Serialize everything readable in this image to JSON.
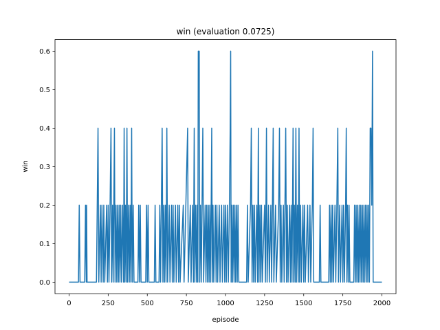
{
  "chart_data": {
    "type": "line",
    "title": "win (evaluation 0.0725)",
    "xlabel": "episode",
    "ylabel": "win",
    "xlim": [
      -90,
      2090
    ],
    "ylim": [
      -0.03,
      0.63
    ],
    "xticks": [
      0,
      250,
      500,
      750,
      1000,
      1250,
      1500,
      1750,
      2000
    ],
    "xtick_labels": [
      "0",
      "250",
      "500",
      "750",
      "1000",
      "1250",
      "1500",
      "1750",
      "2000"
    ],
    "yticks": [
      0.0,
      0.1,
      0.2,
      0.3,
      0.4,
      0.5,
      0.6
    ],
    "ytick_labels": [
      "0.0",
      "0.1",
      "0.2",
      "0.3",
      "0.4",
      "0.5",
      "0.6"
    ],
    "grid": false,
    "series": [
      {
        "color": "#1f77b4",
        "points": [
          [
            0,
            0.0
          ],
          [
            60,
            0.0
          ],
          [
            65,
            0.2
          ],
          [
            70,
            0.0
          ],
          [
            100,
            0.0
          ],
          [
            105,
            0.2
          ],
          [
            110,
            0.0
          ],
          [
            112,
            0.2
          ],
          [
            115,
            0.0
          ],
          [
            175,
            0.0
          ],
          [
            180,
            0.2
          ],
          [
            185,
            0.4
          ],
          [
            190,
            0.0
          ],
          [
            200,
            0.2
          ],
          [
            205,
            0.0
          ],
          [
            210,
            0.2
          ],
          [
            218,
            0.0
          ],
          [
            222,
            0.2
          ],
          [
            228,
            0.0
          ],
          [
            240,
            0.2
          ],
          [
            245,
            0.0
          ],
          [
            250,
            0.2
          ],
          [
            255,
            0.0
          ],
          [
            262,
            0.2
          ],
          [
            268,
            0.4
          ],
          [
            272,
            0.0
          ],
          [
            278,
            0.2
          ],
          [
            282,
            0.0
          ],
          [
            290,
            0.4
          ],
          [
            294,
            0.0
          ],
          [
            300,
            0.2
          ],
          [
            305,
            0.0
          ],
          [
            310,
            0.2
          ],
          [
            315,
            0.0
          ],
          [
            320,
            0.2
          ],
          [
            325,
            0.0
          ],
          [
            330,
            0.2
          ],
          [
            335,
            0.0
          ],
          [
            342,
            0.2
          ],
          [
            348,
            0.0
          ],
          [
            352,
            0.4
          ],
          [
            356,
            0.0
          ],
          [
            360,
            0.2
          ],
          [
            365,
            0.0
          ],
          [
            370,
            0.4
          ],
          [
            374,
            0.0
          ],
          [
            380,
            0.2
          ],
          [
            385,
            0.0
          ],
          [
            390,
            0.2
          ],
          [
            395,
            0.0
          ],
          [
            400,
            0.4
          ],
          [
            404,
            0.0
          ],
          [
            410,
            0.2
          ],
          [
            415,
            0.0
          ],
          [
            440,
            0.0
          ],
          [
            445,
            0.2
          ],
          [
            450,
            0.0
          ],
          [
            455,
            0.2
          ],
          [
            460,
            0.0
          ],
          [
            490,
            0.0
          ],
          [
            495,
            0.2
          ],
          [
            500,
            0.0
          ],
          [
            505,
            0.2
          ],
          [
            510,
            0.0
          ],
          [
            545,
            0.0
          ],
          [
            550,
            0.2
          ],
          [
            555,
            0.0
          ],
          [
            575,
            0.0
          ],
          [
            580,
            0.2
          ],
          [
            585,
            0.0
          ],
          [
            595,
            0.4
          ],
          [
            600,
            0.0
          ],
          [
            605,
            0.2
          ],
          [
            610,
            0.0
          ],
          [
            615,
            0.2
          ],
          [
            620,
            0.0
          ],
          [
            625,
            0.4
          ],
          [
            630,
            0.0
          ],
          [
            640,
            0.2
          ],
          [
            645,
            0.0
          ],
          [
            655,
            0.2
          ],
          [
            660,
            0.0
          ],
          [
            665,
            0.2
          ],
          [
            670,
            0.0
          ],
          [
            680,
            0.2
          ],
          [
            685,
            0.0
          ],
          [
            695,
            0.2
          ],
          [
            700,
            0.0
          ],
          [
            705,
            0.2
          ],
          [
            710,
            0.0
          ],
          [
            730,
            0.2
          ],
          [
            735,
            0.0
          ],
          [
            758,
            0.4
          ],
          [
            762,
            0.0
          ],
          [
            775,
            0.2
          ],
          [
            780,
            0.0
          ],
          [
            790,
            0.2
          ],
          [
            795,
            0.0
          ],
          [
            800,
            0.4
          ],
          [
            804,
            0.0
          ],
          [
            810,
            0.2
          ],
          [
            815,
            0.0
          ],
          [
            820,
            0.2
          ],
          [
            823,
            0.0
          ],
          [
            826,
            0.6
          ],
          [
            832,
            0.6
          ],
          [
            835,
            0.0
          ],
          [
            840,
            0.2
          ],
          [
            845,
            0.0
          ],
          [
            855,
            0.4
          ],
          [
            860,
            0.0
          ],
          [
            870,
            0.2
          ],
          [
            875,
            0.0
          ],
          [
            880,
            0.2
          ],
          [
            885,
            0.0
          ],
          [
            890,
            0.2
          ],
          [
            895,
            0.0
          ],
          [
            900,
            0.2
          ],
          [
            905,
            0.0
          ],
          [
            912,
            0.4
          ],
          [
            916,
            0.0
          ],
          [
            920,
            0.2
          ],
          [
            925,
            0.0
          ],
          [
            935,
            0.2
          ],
          [
            940,
            0.0
          ],
          [
            945,
            0.2
          ],
          [
            950,
            0.0
          ],
          [
            960,
            0.2
          ],
          [
            965,
            0.0
          ],
          [
            975,
            0.2
          ],
          [
            980,
            0.0
          ],
          [
            990,
            0.2
          ],
          [
            995,
            0.0
          ],
          [
            1000,
            0.2
          ],
          [
            1005,
            0.0
          ],
          [
            1012,
            0.2
          ],
          [
            1018,
            0.0
          ],
          [
            1025,
            0.2
          ],
          [
            1030,
            0.4
          ],
          [
            1033,
            0.6
          ],
          [
            1036,
            0.0
          ],
          [
            1040,
            0.2
          ],
          [
            1045,
            0.0
          ],
          [
            1050,
            0.2
          ],
          [
            1055,
            0.0
          ],
          [
            1060,
            0.2
          ],
          [
            1065,
            0.0
          ],
          [
            1070,
            0.2
          ],
          [
            1075,
            0.0
          ],
          [
            1080,
            0.2
          ],
          [
            1085,
            0.0
          ],
          [
            1135,
            0.0
          ],
          [
            1140,
            0.2
          ],
          [
            1145,
            0.0
          ],
          [
            1160,
            0.2
          ],
          [
            1165,
            0.4
          ],
          [
            1170,
            0.0
          ],
          [
            1175,
            0.2
          ],
          [
            1180,
            0.0
          ],
          [
            1185,
            0.2
          ],
          [
            1190,
            0.0
          ],
          [
            1200,
            0.2
          ],
          [
            1205,
            0.0
          ],
          [
            1210,
            0.4
          ],
          [
            1214,
            0.0
          ],
          [
            1220,
            0.2
          ],
          [
            1225,
            0.0
          ],
          [
            1230,
            0.2
          ],
          [
            1235,
            0.0
          ],
          [
            1250,
            0.2
          ],
          [
            1255,
            0.0
          ],
          [
            1262,
            0.4
          ],
          [
            1266,
            0.0
          ],
          [
            1275,
            0.2
          ],
          [
            1280,
            0.0
          ],
          [
            1290,
            0.2
          ],
          [
            1295,
            0.0
          ],
          [
            1305,
            0.4
          ],
          [
            1309,
            0.0
          ],
          [
            1320,
            0.2
          ],
          [
            1325,
            0.0
          ],
          [
            1340,
            0.2
          ],
          [
            1345,
            0.4
          ],
          [
            1350,
            0.0
          ],
          [
            1355,
            0.2
          ],
          [
            1360,
            0.0
          ],
          [
            1370,
            0.2
          ],
          [
            1375,
            0.0
          ],
          [
            1385,
            0.4
          ],
          [
            1390,
            0.0
          ],
          [
            1395,
            0.2
          ],
          [
            1400,
            0.0
          ],
          [
            1410,
            0.2
          ],
          [
            1415,
            0.0
          ],
          [
            1420,
            0.2
          ],
          [
            1425,
            0.0
          ],
          [
            1432,
            0.4
          ],
          [
            1436,
            0.0
          ],
          [
            1440,
            0.2
          ],
          [
            1445,
            0.0
          ],
          [
            1450,
            0.4
          ],
          [
            1454,
            0.0
          ],
          [
            1460,
            0.2
          ],
          [
            1465,
            0.0
          ],
          [
            1470,
            0.4
          ],
          [
            1474,
            0.0
          ],
          [
            1480,
            0.2
          ],
          [
            1485,
            0.0
          ],
          [
            1495,
            0.2
          ],
          [
            1500,
            0.0
          ],
          [
            1505,
            0.2
          ],
          [
            1510,
            0.0
          ],
          [
            1525,
            0.2
          ],
          [
            1530,
            0.0
          ],
          [
            1540,
            0.2
          ],
          [
            1545,
            0.0
          ],
          [
            1555,
            0.2
          ],
          [
            1560,
            0.4
          ],
          [
            1564,
            0.0
          ],
          [
            1600,
            0.0
          ],
          [
            1605,
            0.2
          ],
          [
            1610,
            0.0
          ],
          [
            1660,
            0.0
          ],
          [
            1665,
            0.2
          ],
          [
            1670,
            0.0
          ],
          [
            1675,
            0.2
          ],
          [
            1680,
            0.0
          ],
          [
            1685,
            0.2
          ],
          [
            1690,
            0.0
          ],
          [
            1700,
            0.2
          ],
          [
            1705,
            0.0
          ],
          [
            1712,
            0.2
          ],
          [
            1718,
            0.4
          ],
          [
            1722,
            0.0
          ],
          [
            1730,
            0.2
          ],
          [
            1735,
            0.0
          ],
          [
            1745,
            0.2
          ],
          [
            1750,
            0.0
          ],
          [
            1755,
            0.2
          ],
          [
            1760,
            0.0
          ],
          [
            1768,
            0.2
          ],
          [
            1772,
            0.4
          ],
          [
            1776,
            0.0
          ],
          [
            1780,
            0.2
          ],
          [
            1785,
            0.0
          ],
          [
            1790,
            0.2
          ],
          [
            1795,
            0.0
          ],
          [
            1820,
            0.0
          ],
          [
            1825,
            0.2
          ],
          [
            1830,
            0.0
          ],
          [
            1835,
            0.2
          ],
          [
            1840,
            0.0
          ],
          [
            1845,
            0.2
          ],
          [
            1850,
            0.0
          ],
          [
            1855,
            0.2
          ],
          [
            1860,
            0.0
          ],
          [
            1865,
            0.2
          ],
          [
            1870,
            0.0
          ],
          [
            1875,
            0.2
          ],
          [
            1880,
            0.0
          ],
          [
            1885,
            0.2
          ],
          [
            1890,
            0.0
          ],
          [
            1895,
            0.2
          ],
          [
            1900,
            0.0
          ],
          [
            1905,
            0.2
          ],
          [
            1910,
            0.0
          ],
          [
            1915,
            0.2
          ],
          [
            1920,
            0.0
          ],
          [
            1925,
            0.4
          ],
          [
            1930,
            0.4
          ],
          [
            1935,
            0.2
          ],
          [
            1940,
            0.6
          ],
          [
            1944,
            0.0
          ],
          [
            2000,
            0.0
          ]
        ]
      }
    ]
  }
}
